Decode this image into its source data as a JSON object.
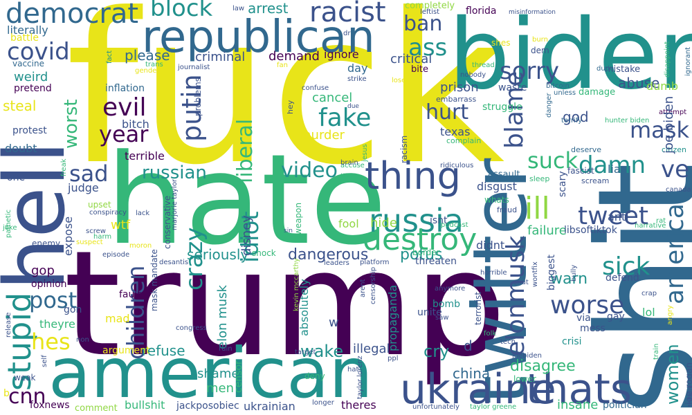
{
  "cloud": {
    "palette": {
      "purple": "#440154",
      "indigo": "#3b528b",
      "blue": "#31688e",
      "teal": "#21918c",
      "green": "#35b779",
      "lime": "#90d743",
      "yellow": "#e8e419"
    },
    "words": [
      {
        "text": "fuck",
        "color": "#e8e419"
      },
      {
        "text": "trump",
        "color": "#440154"
      },
      {
        "text": "hate",
        "color": "#35b779"
      },
      {
        "text": "shit",
        "color": "#31688e"
      },
      {
        "text": "biden",
        "color": "#21918c"
      },
      {
        "text": "american",
        "color": "#21918c"
      },
      {
        "text": "hell",
        "color": "#3b528b"
      },
      {
        "text": "twitter",
        "color": "#31688e"
      },
      {
        "text": "republican",
        "color": "#31688e"
      },
      {
        "text": "ukraine",
        "color": "#3b528b"
      },
      {
        "text": "thats",
        "color": "#3b528b"
      },
      {
        "text": "thing",
        "color": "#3b528b"
      },
      {
        "text": "russia",
        "color": "#21918c"
      },
      {
        "text": "destroy",
        "color": "#35b779"
      },
      {
        "text": "democrat",
        "color": "#31688e"
      },
      {
        "text": "racist",
        "color": "#3b528b"
      },
      {
        "text": "block",
        "color": "#21918c"
      },
      {
        "text": "covid",
        "color": "#3b528b"
      },
      {
        "text": "stupid",
        "color": "#21918c"
      },
      {
        "text": "children",
        "color": "#3b528b"
      },
      {
        "text": "elonmusk",
        "color": "#3b528b"
      },
      {
        "text": "worse",
        "color": "#3b528b"
      },
      {
        "text": "america",
        "color": "#31688e"
      },
      {
        "text": "blame",
        "color": "#3b528b"
      },
      {
        "text": "ill",
        "color": "#90d743"
      },
      {
        "text": "tweet",
        "color": "#3b528b"
      },
      {
        "text": "ve",
        "color": "#3b528b"
      },
      {
        "text": "mask",
        "color": "#3b528b"
      },
      {
        "text": "sick",
        "color": "#21918c"
      },
      {
        "text": "damn",
        "color": "#21918c"
      },
      {
        "text": "suck",
        "color": "#35b779"
      },
      {
        "text": "putin",
        "color": "#3b528b"
      },
      {
        "text": "liberal",
        "color": "#35b779"
      },
      {
        "text": "fake",
        "color": "#21918c"
      },
      {
        "text": "evil",
        "color": "#440154"
      },
      {
        "text": "sorry",
        "color": "#3b528b"
      },
      {
        "text": "hurt",
        "color": "#3b528b"
      },
      {
        "text": "ass",
        "color": "#21918c"
      },
      {
        "text": "ban",
        "color": "#3b528b"
      },
      {
        "text": "year",
        "color": "#440154"
      },
      {
        "text": "crazy",
        "color": "#21918c"
      },
      {
        "text": "idiot",
        "color": "#21918c"
      },
      {
        "text": "post",
        "color": "#31688e"
      },
      {
        "text": "hes",
        "color": "#e8e419"
      },
      {
        "text": "sad",
        "color": "#3b528b"
      },
      {
        "text": "russian",
        "color": "#21918c"
      },
      {
        "text": "video",
        "color": "#21918c"
      },
      {
        "text": "worst",
        "color": "#35b779"
      },
      {
        "text": "cnn",
        "color": "#440154"
      },
      {
        "text": "women",
        "color": "#21918c"
      },
      {
        "text": "wake",
        "color": "#21918c"
      },
      {
        "text": "cry",
        "color": "#21918c"
      },
      {
        "text": "china",
        "color": "#31688e"
      },
      {
        "text": "disagree",
        "color": "#35b779"
      },
      {
        "text": "potus",
        "color": "#21918c"
      },
      {
        "text": "dangerous",
        "color": "#3b528b"
      },
      {
        "text": "seriously",
        "color": "#21918c"
      },
      {
        "text": "elon musk",
        "color": "#21918c"
      },
      {
        "text": "disney",
        "color": "#3b528b"
      },
      {
        "text": "murder",
        "color": "#e8e419"
      },
      {
        "text": "cancel",
        "color": "#35b779"
      },
      {
        "text": "prison",
        "color": "#3b528b"
      },
      {
        "text": "abuse",
        "color": "#3b528b"
      },
      {
        "text": "warn",
        "color": "#21918c"
      },
      {
        "text": "god",
        "color": "#3b528b"
      },
      {
        "text": "refuse",
        "color": "#21918c"
      },
      {
        "text": "shame",
        "color": "#21918c"
      },
      {
        "text": "men",
        "color": "#35b779"
      },
      {
        "text": "illegal",
        "color": "#3b528b"
      },
      {
        "text": "insane",
        "color": "#35b779"
      },
      {
        "text": "steal",
        "color": "#e8e419"
      },
      {
        "text": "arrest",
        "color": "#21918c"
      },
      {
        "text": "please",
        "color": "#31688e"
      },
      {
        "text": "criminal",
        "color": "#3b528b"
      },
      {
        "text": "demand",
        "color": "#440154"
      },
      {
        "text": "ignore",
        "color": "#440154"
      },
      {
        "text": "critical",
        "color": "#3b528b"
      },
      {
        "text": "day",
        "color": "#31688e"
      },
      {
        "text": "bite",
        "color": "#440154"
      },
      {
        "text": "weird",
        "color": "#21918c"
      },
      {
        "text": "literally",
        "color": "#31688e"
      },
      {
        "text": "battle",
        "color": "#e8e419"
      },
      {
        "text": "vaccine",
        "color": "#31688e"
      },
      {
        "text": "pretend",
        "color": "#440154"
      },
      {
        "text": "inflation",
        "color": "#31688e"
      },
      {
        "text": "bitch",
        "color": "#3b528b"
      },
      {
        "text": "terrible",
        "color": "#440154"
      },
      {
        "text": "protest",
        "color": "#3b528b"
      },
      {
        "text": "doubt",
        "color": "#31688e"
      },
      {
        "text": "one",
        "color": "#3b528b"
      },
      {
        "text": "judge",
        "color": "#3b528b"
      },
      {
        "text": "wtf",
        "color": "#e8e419"
      },
      {
        "text": "expose",
        "color": "#3b528b"
      },
      {
        "text": "hide",
        "color": "#90d743"
      },
      {
        "text": "fool",
        "color": "#90d743"
      },
      {
        "text": "gop",
        "color": "#440154"
      },
      {
        "text": "opinion",
        "color": "#440154"
      },
      {
        "text": "fault",
        "color": "#440154"
      },
      {
        "text": "mad",
        "color": "#e8e419"
      },
      {
        "text": "theyre",
        "color": "#35b779"
      },
      {
        "text": "gon",
        "color": "#3b528b"
      },
      {
        "text": "argument",
        "color": "#e8e419"
      },
      {
        "text": "foxnews",
        "color": "#440154"
      },
      {
        "text": "bullshit",
        "color": "#35b779"
      },
      {
        "text": "jackposobiec",
        "color": "#3b528b"
      },
      {
        "text": "comment",
        "color": "#90d743"
      },
      {
        "text": "ukrainian",
        "color": "#3b528b"
      },
      {
        "text": "theres",
        "color": "#440154"
      },
      {
        "text": "censor",
        "color": "#35b779"
      },
      {
        "text": "propaganda",
        "color": "#21918c"
      },
      {
        "text": "absolutely",
        "color": "#21918c"
      },
      {
        "text": "unite",
        "color": "#3b528b"
      },
      {
        "text": "bomb",
        "color": "#21918c"
      },
      {
        "text": "threaten",
        "color": "#3b528b"
      },
      {
        "text": "didnt",
        "color": "#3b528b"
      },
      {
        "text": "isnt",
        "color": "#3b528b"
      },
      {
        "text": "failure",
        "color": "#35b779"
      },
      {
        "text": "libsoftiktok",
        "color": "#3b528b"
      },
      {
        "text": "biggest",
        "color": "#3b528b"
      },
      {
        "text": "lol",
        "color": "#35b779"
      },
      {
        "text": "gay",
        "color": "#3b528b"
      },
      {
        "text": "crisi",
        "color": "#21918c"
      },
      {
        "text": "via",
        "color": "#3b528b"
      },
      {
        "text": "mess",
        "color": "#3b528b"
      },
      {
        "text": "defend",
        "color": "#3b528b"
      },
      {
        "text": "politician",
        "color": "#31688e"
      },
      {
        "text": "joe rogan",
        "color": "#3b528b"
      },
      {
        "text": "anti",
        "color": "#3b528b"
      },
      {
        "text": "liar",
        "color": "#31688e"
      },
      {
        "text": "scary",
        "color": "#3b528b"
      },
      {
        "text": "texas",
        "color": "#3b528b"
      },
      {
        "text": "struggle",
        "color": "#35b779"
      },
      {
        "text": "waste",
        "color": "#3b528b"
      },
      {
        "text": "dumb",
        "color": "#90d743"
      },
      {
        "text": "florida",
        "color": "#440154"
      },
      {
        "text": "mistake",
        "color": "#3b528b"
      },
      {
        "text": "completely",
        "color": "#90d743"
      },
      {
        "text": "leftist",
        "color": "#3b528b"
      },
      {
        "text": "misinformation",
        "color": "#3b528b"
      },
      {
        "text": "disgust",
        "color": "#3b528b"
      },
      {
        "text": "assault",
        "color": "#31688e"
      },
      {
        "text": "damage",
        "color": "#35b779"
      },
      {
        "text": "fascist",
        "color": "#3b528b"
      },
      {
        "text": "deserve",
        "color": "#31688e"
      },
      {
        "text": "canada",
        "color": "#3b528b"
      },
      {
        "text": "citizen",
        "color": "#21918c"
      },
      {
        "text": "attempt",
        "color": "#440154"
      },
      {
        "text": "joe biden",
        "color": "#3b528b"
      },
      {
        "text": "dude",
        "color": "#31688e"
      },
      {
        "text": "bitcoin",
        "color": "#31688e"
      },
      {
        "text": "unless",
        "color": "#31688e"
      },
      {
        "text": "danger",
        "color": "#31688e"
      },
      {
        "text": "terrify",
        "color": "#31688e"
      },
      {
        "text": "hunter biden",
        "color": "#35b779"
      },
      {
        "text": "ignorant",
        "color": "#31688e"
      },
      {
        "text": "disappoint",
        "color": "#35b779"
      },
      {
        "text": "burn",
        "color": "#e8e419"
      },
      {
        "text": "shes",
        "color": "#e8e419"
      },
      {
        "text": "dem",
        "color": "#3b528b"
      },
      {
        "text": "law",
        "color": "#3b528b"
      },
      {
        "text": "dr",
        "color": "#3b528b"
      },
      {
        "text": "gender",
        "color": "#e8e419"
      },
      {
        "text": "trans",
        "color": "#35b779"
      },
      {
        "text": "journalist",
        "color": "#3b528b"
      },
      {
        "text": "fan",
        "color": "#e8e419"
      },
      {
        "text": "fact",
        "color": "#21918c"
      },
      {
        "text": "strike",
        "color": "#3b528b"
      },
      {
        "text": "loser",
        "color": "#e8e419"
      },
      {
        "text": "nobody",
        "color": "#3b528b"
      },
      {
        "text": "thread",
        "color": "#35b779"
      },
      {
        "text": "confuse",
        "color": "#3b528b"
      },
      {
        "text": "embarrass",
        "color": "#3b528b"
      },
      {
        "text": "due",
        "color": "#3b528b"
      },
      {
        "text": "hey",
        "color": "#3b528b"
      },
      {
        "text": "problems",
        "color": "#3b528b"
      },
      {
        "text": "complain",
        "color": "#35b779"
      },
      {
        "text": "ridiculous",
        "color": "#3b528b"
      },
      {
        "text": "sleep",
        "color": "#35b779"
      },
      {
        "text": "scream",
        "color": "#3b528b"
      },
      {
        "text": "racism",
        "color": "#3b528b"
      },
      {
        "text": "jesus",
        "color": "#35b779"
      },
      {
        "text": "accuse",
        "color": "#35b779"
      },
      {
        "text": "brain",
        "color": "#3b528b"
      },
      {
        "text": "u s",
        "color": "#35b779"
      },
      {
        "text": "conservative",
        "color": "#3b528b"
      },
      {
        "text": "marjorie taylor",
        "color": "#3b528b"
      },
      {
        "text": "whats",
        "color": "#35b779"
      },
      {
        "text": "fraud",
        "color": "#3b528b"
      },
      {
        "text": "podcast",
        "color": "#35b779"
      },
      {
        "text": "narrative",
        "color": "#35b779"
      },
      {
        "text": "rat",
        "color": "#35b779"
      },
      {
        "text": "upset",
        "color": "#90d743"
      },
      {
        "text": "conspiracy",
        "color": "#3b528b"
      },
      {
        "text": "lack",
        "color": "#3b528b"
      },
      {
        "text": "freak",
        "color": "#35b779"
      },
      {
        "text": "pathetic",
        "color": "#35b779"
      },
      {
        "text": "joke",
        "color": "#35b779"
      },
      {
        "text": "screw",
        "color": "#3b528b"
      },
      {
        "text": "harm",
        "color": "#35b779"
      },
      {
        "text": "suspect",
        "color": "#e8e419"
      },
      {
        "text": "enemy",
        "color": "#3b528b"
      },
      {
        "text": "sin",
        "color": "#3b528b"
      },
      {
        "text": "weapon",
        "color": "#35b779"
      },
      {
        "text": "moron",
        "color": "#e8e419"
      },
      {
        "text": "episode",
        "color": "#3b528b"
      },
      {
        "text": "desantis",
        "color": "#3b528b"
      },
      {
        "text": "leaders",
        "color": "#3b528b"
      },
      {
        "text": "platform",
        "color": "#3b528b"
      },
      {
        "text": "border",
        "color": "#35b779"
      },
      {
        "text": "horrible",
        "color": "#3b528b"
      },
      {
        "text": "wontfix",
        "color": "#3b528b"
      },
      {
        "text": "bully",
        "color": "#3b528b"
      },
      {
        "text": "shut",
        "color": "#3b528b"
      },
      {
        "text": "crap",
        "color": "#3b528b"
      },
      {
        "text": "angry",
        "color": "#e8e419"
      },
      {
        "text": "shock",
        "color": "#35b779"
      },
      {
        "text": "kevin mccarthy",
        "color": "#90d743"
      },
      {
        "text": "terrorist",
        "color": "#3b528b"
      },
      {
        "text": "anymore",
        "color": "#3b528b"
      },
      {
        "text": "arent",
        "color": "#3b528b"
      },
      {
        "text": "censorship",
        "color": "#3b528b"
      },
      {
        "text": "saw",
        "color": "#3b528b"
      },
      {
        "text": "folk",
        "color": "#35b779"
      },
      {
        "text": "tech",
        "color": "#3b528b"
      },
      {
        "text": "joebiden",
        "color": "#3b528b"
      },
      {
        "text": "lower",
        "color": "#35b779"
      },
      {
        "text": "deny",
        "color": "#35b779"
      },
      {
        "text": "target",
        "color": "#3b528b"
      },
      {
        "text": "ruin",
        "color": "#3b528b"
      },
      {
        "text": "mandate",
        "color": "#3b528b"
      },
      {
        "text": "mask mandate",
        "color": "#3b528b"
      },
      {
        "text": "congress",
        "color": "#3b528b"
      },
      {
        "text": "self",
        "color": "#3b528b"
      },
      {
        "text": "release",
        "color": "#3b528b"
      },
      {
        "text": "non",
        "color": "#3b528b"
      },
      {
        "text": "weak",
        "color": "#3b528b"
      },
      {
        "text": "b",
        "color": "#e8e419"
      },
      {
        "text": "hat",
        "color": "#3b528b"
      },
      {
        "text": "ppl",
        "color": "#3b528b"
      },
      {
        "text": "taylor lorenz",
        "color": "#3b528b"
      },
      {
        "text": "longer",
        "color": "#3b528b"
      },
      {
        "text": "unfortunately",
        "color": "#3b528b"
      },
      {
        "text": "taylor greene",
        "color": "#35b779"
      },
      {
        "text": "totally",
        "color": "#3b528b"
      },
      {
        "text": "train",
        "color": "#35b779"
      },
      {
        "text": "w",
        "color": "#3b528b"
      },
      {
        "text": "d",
        "color": "#3b528b"
      }
    ]
  }
}
